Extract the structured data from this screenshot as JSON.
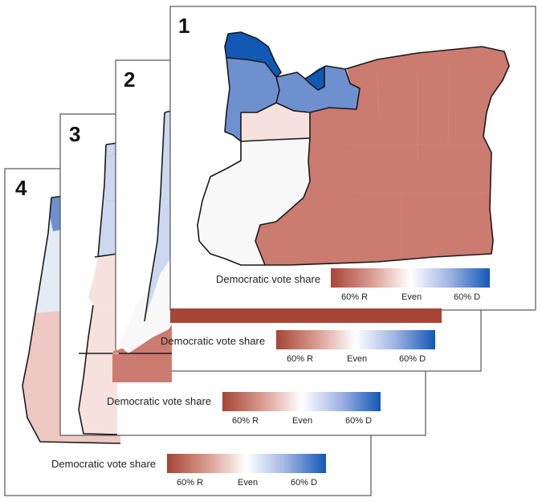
{
  "colors": {
    "strong_rep": "#a64536",
    "rep": "#cc7b70",
    "lean_rep": "#eec8c3",
    "slight_rep": "#f7e1de",
    "even": "#f9f8f8",
    "slight_dem": "#e4ebf4",
    "lean_dem": "#cbd8ef",
    "dem": "#6f90cf",
    "strong_dem": "#1258b5"
  },
  "legend": {
    "title": "Democratic vote share",
    "left_label": "60% R",
    "mid_label": "Even",
    "right_label": "60% D"
  },
  "panels": [
    {
      "number": "1",
      "districts": [
        {
          "name": "district-north-coast",
          "color": "strong_dem"
        },
        {
          "name": "district-willamette",
          "color": "dem"
        },
        {
          "name": "district-metro",
          "color": "dem"
        },
        {
          "name": "district-columbia-strip",
          "color": "strong_dem"
        },
        {
          "name": "district-mid-valley",
          "color": "slight_rep"
        },
        {
          "name": "district-central",
          "color": "even"
        },
        {
          "name": "district-east",
          "color": "rep"
        },
        {
          "name": "district-south",
          "color": "strong_rep"
        }
      ]
    },
    {
      "number": "2",
      "districts": [
        {
          "name": "district-coast",
          "color": "lean_dem"
        },
        {
          "name": "district-valley",
          "color": "even"
        },
        {
          "name": "district-south",
          "color": "rep"
        }
      ]
    },
    {
      "number": "3",
      "districts": [
        {
          "name": "district-coast",
          "color": "lean_dem"
        },
        {
          "name": "district-valley",
          "color": "slight_rep"
        },
        {
          "name": "district-south",
          "color": "slight_rep"
        }
      ]
    },
    {
      "number": "4",
      "districts": [
        {
          "name": "district-north-coast",
          "color": "dem"
        },
        {
          "name": "district-northwest",
          "color": "slight_dem"
        },
        {
          "name": "district-south",
          "color": "lean_rep"
        }
      ]
    }
  ]
}
